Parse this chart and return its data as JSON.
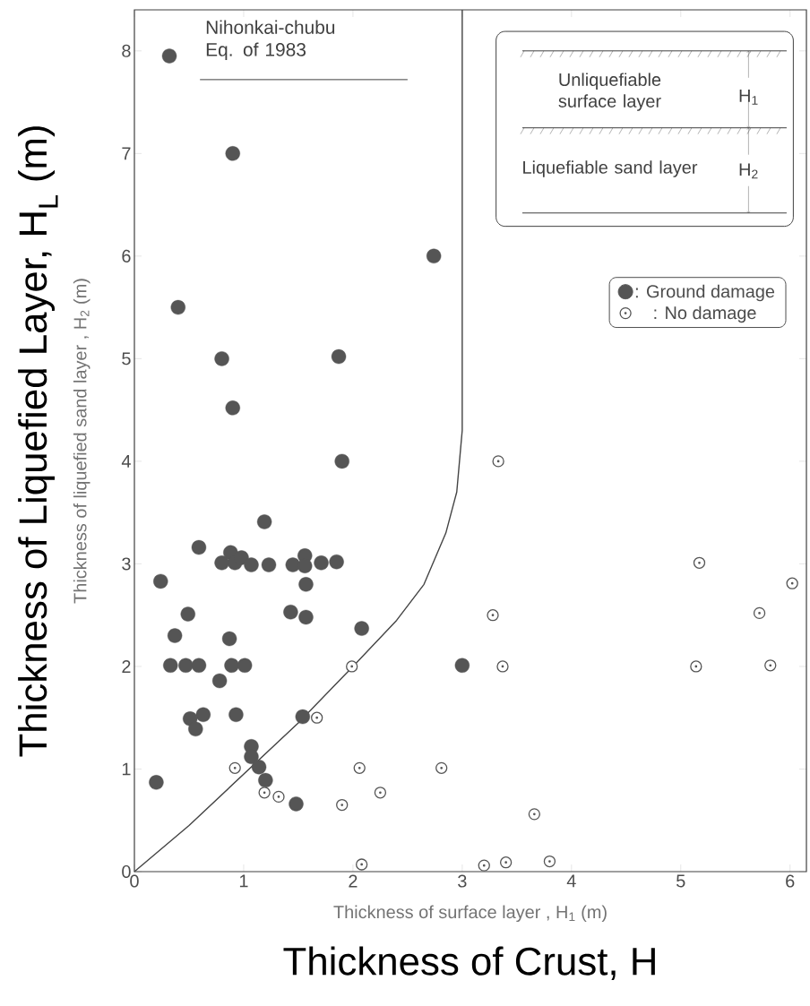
{
  "chart_data": {
    "type": "scatter",
    "title": "Nihonkai-chubu Eq. of 1983",
    "xlabel": "Thickness of Crust, H",
    "ylabel": "Thickness of Liquefied Layer, H$_{L}$ (m)",
    "annotations": [
      "Thickness of surface layer , H$_{1}$ (m)",
      "Thickness of liquefied sand layer , H$_{2}$ (m)",
      "Unliquefiable surface layer",
      "H$_{1}$",
      "Liquefiable sand layer",
      "H$_{2}$"
    ],
    "xlim": [
      0,
      6.15
    ],
    "ylim": [
      0,
      8.4
    ],
    "xticks": [
      0,
      1,
      2,
      3,
      4,
      5,
      6
    ],
    "yticks": [
      0,
      1,
      2,
      3,
      4,
      5,
      6,
      7,
      8
    ],
    "grid": false,
    "legend": "top right",
    "marker": "circle",
    "series": [
      {
        "name": ": Ground damage",
        "color": "#555555",
        "x": [
          0.32,
          0.9,
          2.74,
          0.4,
          0.8,
          1.87,
          0.9,
          1.9,
          1.19,
          0.59,
          0.8,
          0.88,
          0.92,
          0.98,
          1.07,
          1.23,
          1.45,
          1.56,
          1.56,
          1.71,
          1.85,
          0.24,
          1.57,
          0.49,
          1.43,
          1.57,
          2.08,
          0.37,
          0.87,
          0.33,
          0.47,
          0.59,
          0.89,
          1.01,
          3.0,
          0.78,
          0.63,
          0.51,
          0.93,
          0.56,
          1.54,
          1.07,
          1.07,
          1.14,
          1.2,
          0.2,
          1.48
        ],
        "values": [
          7.95,
          7.0,
          6.0,
          5.5,
          5.0,
          5.02,
          4.52,
          4.0,
          3.41,
          3.16,
          3.01,
          3.11,
          3.01,
          3.06,
          2.99,
          2.99,
          2.99,
          3.08,
          2.98,
          3.01,
          3.02,
          2.83,
          2.8,
          2.51,
          2.53,
          2.48,
          2.37,
          2.3,
          2.27,
          2.01,
          2.01,
          2.01,
          2.01,
          2.01,
          2.01,
          1.86,
          1.53,
          1.49,
          1.53,
          1.39,
          1.51,
          1.22,
          1.12,
          1.02,
          0.89,
          0.87,
          0.66
        ]
      },
      {
        "name": ": No damage",
        "color": "#555555",
        "x": [
          1.99,
          1.67,
          0.92,
          2.06,
          2.81,
          1.19,
          1.32,
          1.9,
          2.25,
          2.08,
          3.2,
          3.33,
          5.17,
          6.02,
          3.28,
          5.72,
          3.37,
          5.14,
          5.82,
          3.66,
          3.4,
          3.8
        ],
        "values": [
          2.0,
          1.5,
          1.01,
          1.01,
          1.01,
          0.77,
          0.73,
          0.65,
          0.77,
          0.07,
          0.06,
          4.0,
          3.01,
          2.81,
          2.5,
          2.52,
          2.0,
          2.0,
          2.01,
          0.56,
          0.09,
          0.1
        ]
      },
      {
        "type": "line",
        "color": "#444444",
        "marker": "none",
        "x": [
          0,
          0.5,
          1,
          1.5,
          2,
          2.4,
          2.65,
          2.85,
          2.95,
          3,
          3
        ],
        "values": [
          0,
          0.45,
          0.95,
          1.45,
          2,
          2.45,
          2.8,
          3.3,
          3.7,
          4.3,
          8.4
        ]
      }
    ]
  }
}
